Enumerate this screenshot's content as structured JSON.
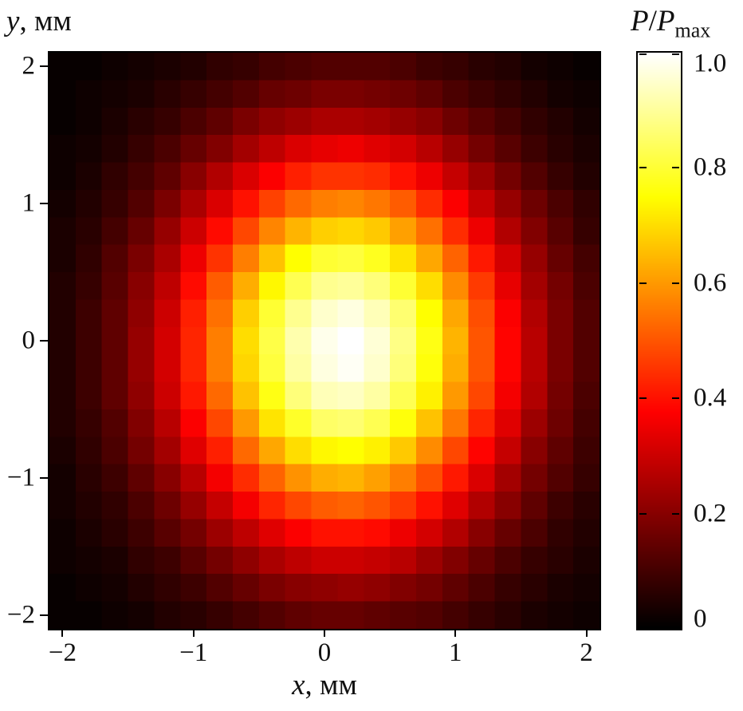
{
  "figure": {
    "y_axis_label": {
      "var": "y",
      "rest": ", мм"
    },
    "x_axis_label": {
      "var": "x",
      "rest": ", мм"
    },
    "colorbar_title": {
      "p1": "P",
      "slash": "/",
      "p2": "P",
      "sub": "max"
    }
  },
  "chart_data": {
    "type": "heatmap",
    "title": "",
    "xlabel": "x, мм",
    "ylabel": "y, мм",
    "colorbar_label": "P/Pmax",
    "colormap": "hot",
    "colormap_stops": [
      "#000000",
      "#ff0000",
      "#ffff00",
      "#ffffff"
    ],
    "grid": false,
    "xlim": [
      -2.1,
      2.1
    ],
    "ylim": [
      -2.1,
      2.1
    ],
    "zlim": [
      0,
      1
    ],
    "x_ticks": [
      -2,
      -1,
      0,
      1,
      2
    ],
    "x_tick_labels": [
      "−2",
      "−1",
      "0",
      "1",
      "2"
    ],
    "y_ticks": [
      -2,
      -1,
      0,
      1,
      2
    ],
    "y_tick_labels": [
      "−2",
      "−1",
      "0",
      "1",
      "2"
    ],
    "colorbar_ticks": [
      0,
      0.2,
      0.4,
      0.6,
      0.8,
      1.0
    ],
    "colorbar_tick_labels": [
      "0",
      "0.2",
      "0.4",
      "0.6",
      "0.8",
      "1.0"
    ],
    "x_centers": [
      -2.0,
      -1.8,
      -1.6,
      -1.4,
      -1.2,
      -1.0,
      -0.8,
      -0.6,
      -0.4,
      -0.2,
      0.0,
      0.2,
      0.4,
      0.6,
      0.8,
      1.0,
      1.2,
      1.4,
      1.6,
      1.8,
      2.0
    ],
    "y_centers": [
      2.0,
      1.8,
      1.6,
      1.4,
      1.2,
      1.0,
      0.8,
      0.6,
      0.4,
      0.2,
      0.0,
      -0.2,
      -0.4,
      -0.6,
      -0.8,
      -1.0,
      -1.2,
      -1.4,
      -1.6,
      -1.8,
      -2.0
    ],
    "values": [
      [
        0.01,
        0.01,
        0.02,
        0.03,
        0.04,
        0.05,
        0.07,
        0.08,
        0.1,
        0.11,
        0.12,
        0.12,
        0.12,
        0.11,
        0.09,
        0.08,
        0.06,
        0.05,
        0.03,
        0.02,
        0.01
      ],
      [
        0.01,
        0.02,
        0.03,
        0.04,
        0.06,
        0.08,
        0.1,
        0.12,
        0.15,
        0.16,
        0.18,
        0.18,
        0.17,
        0.16,
        0.14,
        0.11,
        0.09,
        0.07,
        0.05,
        0.03,
        0.02
      ],
      [
        0.01,
        0.02,
        0.04,
        0.06,
        0.08,
        0.11,
        0.14,
        0.18,
        0.21,
        0.23,
        0.25,
        0.25,
        0.24,
        0.22,
        0.2,
        0.16,
        0.13,
        0.1,
        0.07,
        0.05,
        0.03
      ],
      [
        0.02,
        0.03,
        0.05,
        0.08,
        0.11,
        0.15,
        0.19,
        0.24,
        0.28,
        0.32,
        0.34,
        0.35,
        0.33,
        0.31,
        0.27,
        0.22,
        0.17,
        0.13,
        0.09,
        0.06,
        0.04
      ],
      [
        0.02,
        0.04,
        0.07,
        0.1,
        0.14,
        0.2,
        0.26,
        0.32,
        0.37,
        0.42,
        0.45,
        0.45,
        0.44,
        0.4,
        0.35,
        0.29,
        0.23,
        0.17,
        0.12,
        0.08,
        0.05
      ],
      [
        0.03,
        0.05,
        0.08,
        0.12,
        0.18,
        0.25,
        0.32,
        0.4,
        0.47,
        0.53,
        0.56,
        0.57,
        0.55,
        0.51,
        0.44,
        0.37,
        0.29,
        0.22,
        0.16,
        0.11,
        0.07
      ],
      [
        0.04,
        0.06,
        0.1,
        0.15,
        0.22,
        0.3,
        0.39,
        0.48,
        0.57,
        0.64,
        0.68,
        0.69,
        0.67,
        0.61,
        0.54,
        0.44,
        0.35,
        0.26,
        0.19,
        0.13,
        0.08
      ],
      [
        0.04,
        0.07,
        0.12,
        0.18,
        0.25,
        0.35,
        0.45,
        0.56,
        0.66,
        0.75,
        0.8,
        0.81,
        0.78,
        0.71,
        0.62,
        0.52,
        0.41,
        0.31,
        0.22,
        0.15,
        0.1
      ],
      [
        0.05,
        0.08,
        0.13,
        0.2,
        0.28,
        0.39,
        0.51,
        0.63,
        0.74,
        0.83,
        0.89,
        0.9,
        0.87,
        0.8,
        0.7,
        0.58,
        0.46,
        0.34,
        0.24,
        0.17,
        0.11
      ],
      [
        0.05,
        0.09,
        0.14,
        0.21,
        0.3,
        0.42,
        0.54,
        0.68,
        0.8,
        0.89,
        0.95,
        0.97,
        0.93,
        0.86,
        0.75,
        0.62,
        0.49,
        0.37,
        0.26,
        0.18,
        0.12
      ],
      [
        0.05,
        0.09,
        0.14,
        0.22,
        0.31,
        0.43,
        0.56,
        0.7,
        0.82,
        0.92,
        0.98,
        1.0,
        0.96,
        0.88,
        0.77,
        0.64,
        0.5,
        0.38,
        0.27,
        0.18,
        0.12
      ],
      [
        0.05,
        0.09,
        0.14,
        0.22,
        0.31,
        0.43,
        0.56,
        0.69,
        0.81,
        0.91,
        0.97,
        0.99,
        0.95,
        0.87,
        0.76,
        0.63,
        0.5,
        0.38,
        0.27,
        0.18,
        0.12
      ],
      [
        0.05,
        0.09,
        0.14,
        0.21,
        0.3,
        0.41,
        0.53,
        0.66,
        0.77,
        0.87,
        0.93,
        0.94,
        0.91,
        0.83,
        0.73,
        0.6,
        0.48,
        0.36,
        0.26,
        0.17,
        0.11
      ],
      [
        0.05,
        0.08,
        0.12,
        0.19,
        0.27,
        0.37,
        0.48,
        0.6,
        0.71,
        0.79,
        0.85,
        0.86,
        0.83,
        0.76,
        0.66,
        0.55,
        0.43,
        0.33,
        0.23,
        0.16,
        0.1
      ],
      [
        0.04,
        0.07,
        0.11,
        0.17,
        0.24,
        0.33,
        0.42,
        0.53,
        0.62,
        0.7,
        0.74,
        0.75,
        0.73,
        0.67,
        0.58,
        0.48,
        0.38,
        0.29,
        0.2,
        0.14,
        0.09
      ],
      [
        0.03,
        0.06,
        0.09,
        0.14,
        0.2,
        0.27,
        0.36,
        0.44,
        0.52,
        0.59,
        0.63,
        0.64,
        0.61,
        0.56,
        0.49,
        0.41,
        0.32,
        0.24,
        0.17,
        0.12,
        0.08
      ],
      [
        0.03,
        0.05,
        0.07,
        0.11,
        0.16,
        0.22,
        0.29,
        0.36,
        0.43,
        0.48,
        0.51,
        0.52,
        0.5,
        0.46,
        0.4,
        0.33,
        0.26,
        0.2,
        0.14,
        0.09,
        0.06
      ],
      [
        0.02,
        0.04,
        0.06,
        0.09,
        0.13,
        0.17,
        0.23,
        0.28,
        0.33,
        0.37,
        0.4,
        0.4,
        0.39,
        0.35,
        0.31,
        0.26,
        0.2,
        0.15,
        0.11,
        0.07,
        0.05
      ],
      [
        0.02,
        0.03,
        0.04,
        0.07,
        0.09,
        0.13,
        0.17,
        0.21,
        0.25,
        0.28,
        0.3,
        0.3,
        0.29,
        0.27,
        0.23,
        0.19,
        0.15,
        0.11,
        0.08,
        0.06,
        0.04
      ],
      [
        0.01,
        0.02,
        0.03,
        0.05,
        0.07,
        0.09,
        0.12,
        0.15,
        0.18,
        0.2,
        0.21,
        0.22,
        0.21,
        0.19,
        0.17,
        0.14,
        0.11,
        0.08,
        0.06,
        0.04,
        0.03
      ],
      [
        0.01,
        0.01,
        0.02,
        0.03,
        0.05,
        0.06,
        0.08,
        0.1,
        0.12,
        0.14,
        0.15,
        0.15,
        0.14,
        0.13,
        0.12,
        0.1,
        0.08,
        0.06,
        0.04,
        0.03,
        0.02
      ]
    ]
  }
}
